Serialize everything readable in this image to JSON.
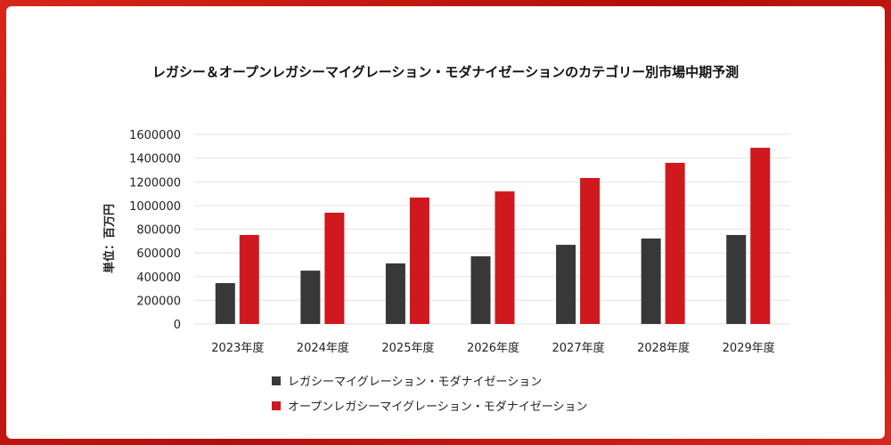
{
  "chart_data": {
    "type": "bar",
    "title": "レガシー＆オープンレガシーマイグレーション・モダナイゼーションのカテゴリー別市場中期予測",
    "ylabel": "単位：百万円",
    "xlabel": "",
    "ylim": [
      0,
      1600000
    ],
    "yticks": [
      "0",
      "200000",
      "400000",
      "600000",
      "800000",
      "1000000",
      "1200000",
      "1400000",
      "1600000"
    ],
    "grid": true,
    "legend": "bottom",
    "categories": [
      "2023年度",
      "2024年度",
      "2025年度",
      "2026年度",
      "2027年度",
      "2028年度",
      "2029年度"
    ],
    "series": [
      {
        "name": "レガシーマイグレーション・モダナイゼーション",
        "color": "#383838",
        "values": [
          345000,
          450000,
          511000,
          571000,
          668000,
          721000,
          751000
        ]
      },
      {
        "name": "オープンレガシーマイグレーション・モダナイゼーション",
        "color": "#d0181f",
        "values": [
          751000,
          939000,
          1067000,
          1119000,
          1232000,
          1360000,
          1487000
        ]
      }
    ]
  }
}
